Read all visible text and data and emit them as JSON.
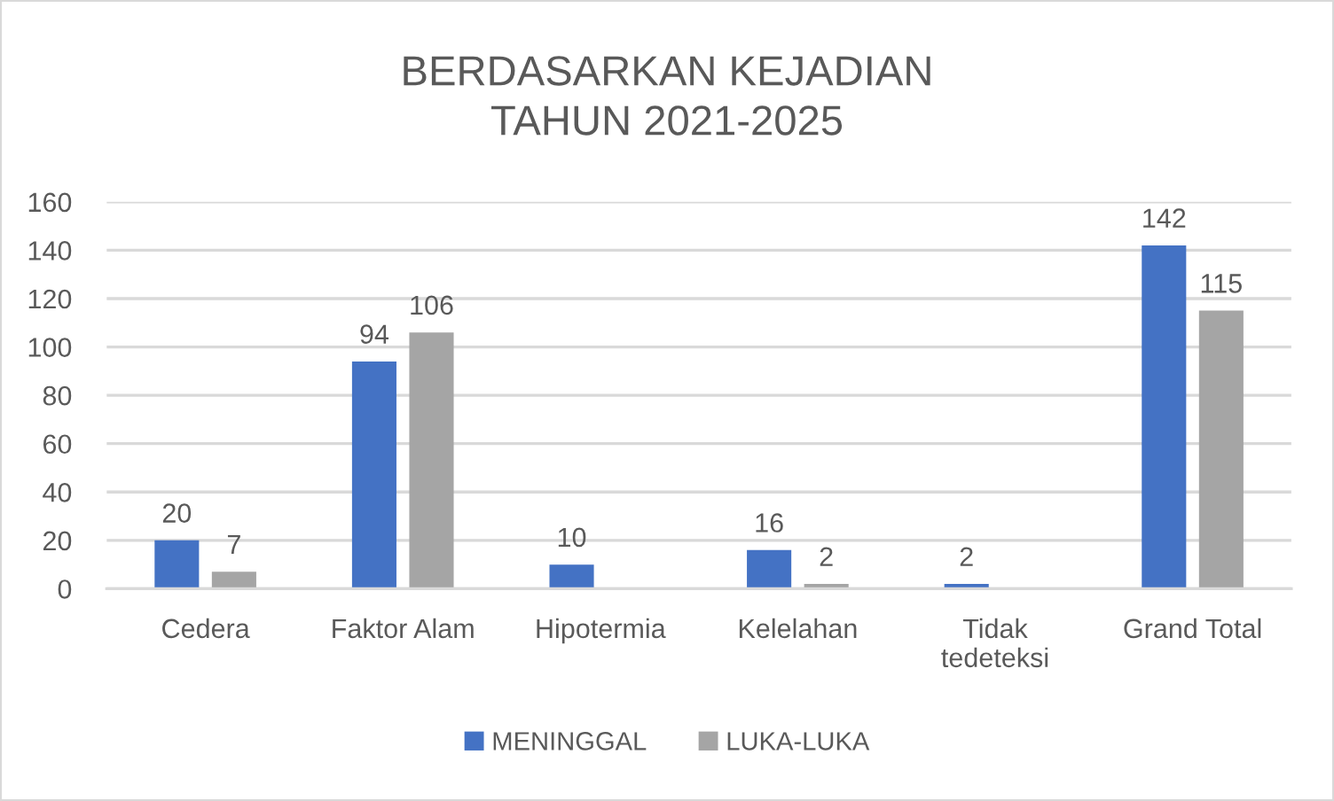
{
  "chart_data": {
    "type": "bar",
    "title": "BERDASARKAN KEJADIAN\nTAHUN 2021-2025",
    "categories": [
      "Cedera",
      "Faktor Alam",
      "Hipotermia",
      "Kelelahan",
      "Tidak\ntedeteksi",
      "Grand Total"
    ],
    "series": [
      {
        "name": "MENINGGAL",
        "color": "#4472c4",
        "values": [
          20,
          94,
          10,
          16,
          2,
          142
        ]
      },
      {
        "name": "LUKA-LUKA",
        "color": "#a5a5a5",
        "values": [
          7,
          106,
          null,
          2,
          null,
          115
        ]
      }
    ],
    "ylim": [
      0,
      160
    ],
    "yticks": [
      0,
      20,
      40,
      60,
      80,
      100,
      120,
      140,
      160
    ],
    "grid": "y",
    "legend": "bottom",
    "data_labels": true
  }
}
